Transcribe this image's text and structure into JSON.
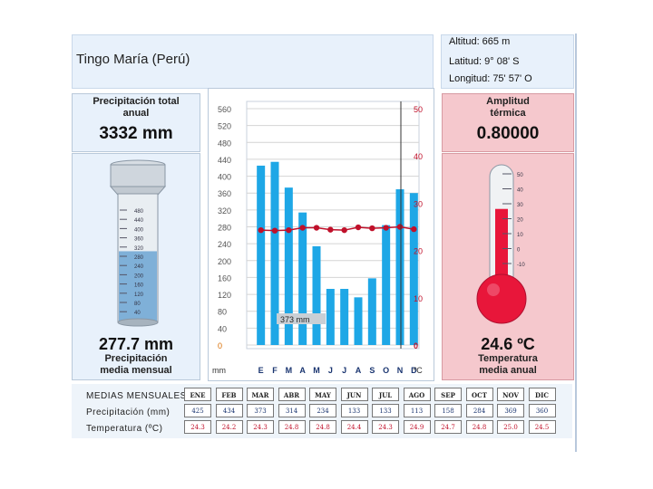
{
  "station": {
    "name": "Tingo María (Perú)"
  },
  "coords": {
    "altitude": "Altitud: 665 m",
    "latitude": "Latitud:  9° 08' S",
    "longitude": "Longitud:  75' 57' O"
  },
  "precip_total": {
    "title_line1": "Precipitación total",
    "title_line2": "anual",
    "value": "3332 mm"
  },
  "precip_monthly": {
    "value": "277.7 mm",
    "label_line1": "Precipitación",
    "label_line2": "media mensual",
    "fill_fraction": 0.55
  },
  "amplitude": {
    "title_line1": "Amplitud",
    "title_line2": "térmica",
    "value": "0.80000"
  },
  "temp_annual": {
    "value": "24.6 ºC",
    "label_line1": "Temperatura",
    "label_line2": "media anual",
    "fill_fraction": 0.68
  },
  "cylinder_scale": [
    "480",
    "440",
    "400",
    "360",
    "320",
    "280",
    "240",
    "200",
    "160",
    "120",
    "80",
    "40"
  ],
  "thermo_scale": [
    "50",
    "40",
    "30",
    "20",
    "10",
    "0",
    "-10"
  ],
  "table": {
    "header": "MEDIAS MENSUALES",
    "precip_label": "Precipitación (mm)",
    "temp_label": "Temperatura (ºC)",
    "months": [
      "ENE",
      "FEB",
      "MAR",
      "ABR",
      "MAY",
      "JUN",
      "JUL",
      "AGO",
      "SEP",
      "OCT",
      "NOV",
      "DIC"
    ],
    "precip": [
      "425",
      "434",
      "373",
      "314",
      "234",
      "133",
      "133",
      "113",
      "158",
      "284",
      "369",
      "360"
    ],
    "temp": [
      "24.3",
      "24.2",
      "24.3",
      "24.8",
      "24.8",
      "24.4",
      "24.3",
      "24.9",
      "24.7",
      "24.8",
      "25.0",
      "24.5"
    ]
  },
  "chart_data": {
    "type": "bar",
    "categories": [
      "E",
      "F",
      "M",
      "A",
      "M",
      "J",
      "J",
      "A",
      "S",
      "O",
      "N",
      "D"
    ],
    "series": [
      {
        "values": [
          425,
          434,
          373,
          314,
          234,
          133,
          133,
          113,
          158,
          284,
          369,
          360
        ],
        "color": "#1ea7e6"
      },
      {
        "values": [
          24.3,
          24.2,
          24.3,
          24.8,
          24.8,
          24.4,
          24.3,
          24.9,
          24.7,
          24.8,
          25.0,
          24.5
        ],
        "color": "#c0102a"
      }
    ],
    "xlabel_left": "mm",
    "xlabel_right": "ºC",
    "ylim_left": [
      0,
      560
    ],
    "yticks_left": [
      "560",
      "520",
      "480",
      "440",
      "400",
      "360",
      "320",
      "280",
      "240",
      "200",
      "160",
      "120",
      "80",
      "40",
      "0"
    ],
    "ylim_right": [
      0,
      50
    ],
    "yticks_right": [
      "50",
      "40",
      "30",
      "20",
      "10",
      "0"
    ],
    "annotation": "373 mm",
    "grid": true
  }
}
